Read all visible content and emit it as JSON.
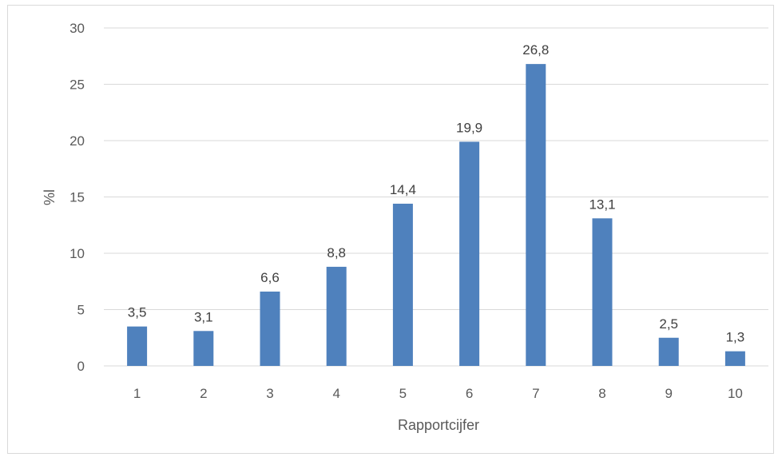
{
  "chart_data": {
    "type": "bar",
    "categories": [
      "1",
      "2",
      "3",
      "4",
      "5",
      "6",
      "7",
      "8",
      "9",
      "10"
    ],
    "values": [
      3.5,
      3.1,
      6.6,
      8.8,
      14.4,
      19.9,
      26.8,
      13.1,
      2.5,
      1.3
    ],
    "data_labels": [
      "3,5",
      "3,1",
      "6,6",
      "8,8",
      "14,4",
      "19,9",
      "26,8",
      "13,1",
      "2,5",
      "1,3"
    ],
    "y_ticks": [
      0,
      5,
      10,
      15,
      20,
      25,
      30
    ],
    "y_tick_labels": [
      "0",
      "5",
      "10",
      "15",
      "20",
      "25",
      "30"
    ],
    "ylim": [
      0,
      30
    ],
    "xlabel": "Rapportcijfer",
    "ylabel": "%l",
    "grid": true,
    "colors": {
      "bar": "#4f81bd",
      "grid": "#d9d9d9"
    }
  }
}
